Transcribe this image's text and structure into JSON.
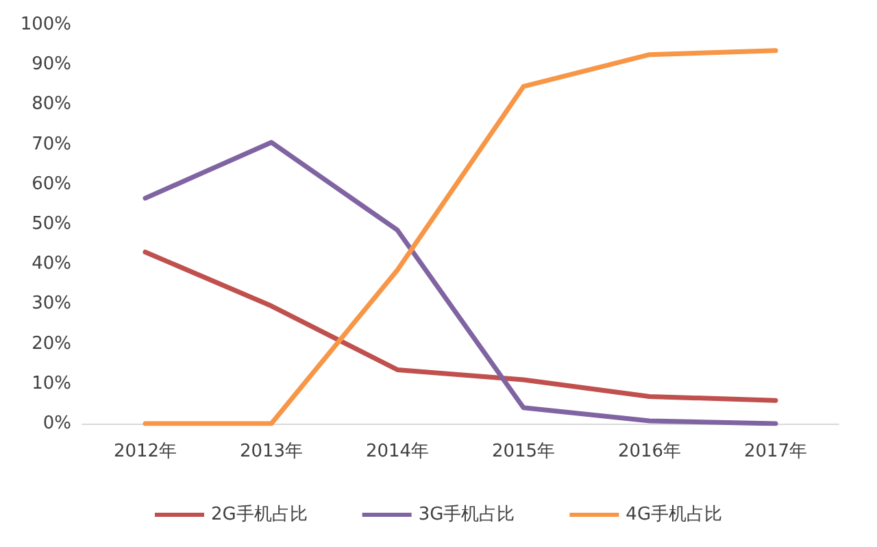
{
  "chart_data": {
    "type": "line",
    "categories": [
      "2012年",
      "2013年",
      "2014年",
      "2015年",
      "2016年",
      "2017年"
    ],
    "series": [
      {
        "name": "2G手机占比",
        "color": "#c0504d",
        "values": [
          43,
          29.5,
          13.5,
          11,
          6.8,
          5.8
        ]
      },
      {
        "name": "3G手机占比",
        "color": "#8064a2",
        "values": [
          56.5,
          70.5,
          48.5,
          4,
          0.7,
          0
        ]
      },
      {
        "name": "4G手机占比",
        "color": "#f79646",
        "values": [
          0,
          0,
          38.5,
          84.5,
          92.5,
          93.5
        ]
      }
    ],
    "ylim": [
      0,
      100
    ],
    "yticks": [
      {
        "value": 0,
        "label": "0%"
      },
      {
        "value": 10,
        "label": "10%"
      },
      {
        "value": 20,
        "label": "20%"
      },
      {
        "value": 30,
        "label": "30%"
      },
      {
        "value": 40,
        "label": "40%"
      },
      {
        "value": 50,
        "label": "50%"
      },
      {
        "value": 60,
        "label": "60%"
      },
      {
        "value": 70,
        "label": "70%"
      },
      {
        "value": 80,
        "label": "80%"
      },
      {
        "value": 90,
        "label": "90%"
      },
      {
        "value": 100,
        "label": "100%"
      }
    ],
    "grid": false,
    "legend": "bottom",
    "marker": "none",
    "line_style": "solid"
  }
}
